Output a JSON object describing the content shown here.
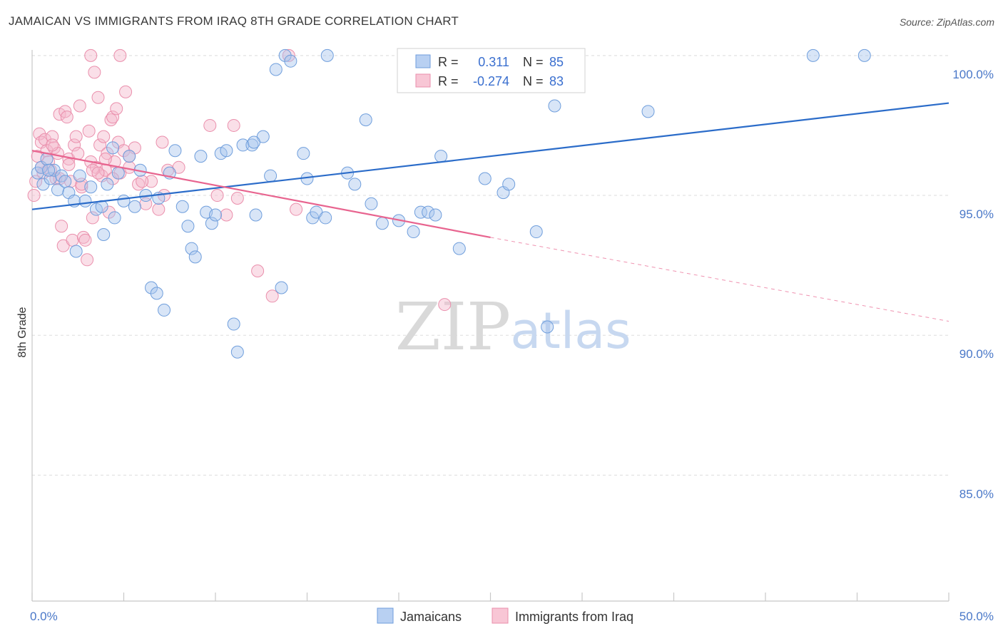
{
  "header": {
    "title": "JAMAICAN VS IMMIGRANTS FROM IRAQ 8TH GRADE CORRELATION CHART",
    "source": "Source: ZipAtlas.com"
  },
  "watermark": {
    "zip": "ZIP",
    "atlas": "atlas"
  },
  "colors": {
    "blue_fill": "#a9c6ee",
    "blue_stroke": "#6f9edc",
    "blue_line": "#2b6cc9",
    "pink_fill": "#f5b8cb",
    "pink_stroke": "#ea8fac",
    "pink_line": "#e8648f",
    "axis_text": "#4a78c8",
    "grid": "#dddddd"
  },
  "legend": {
    "r_label": "R =",
    "n_label": "N =",
    "rows": [
      {
        "series": "Jamaicans",
        "r": "0.311",
        "n": "85"
      },
      {
        "series": "Immigrants from Iraq",
        "r": "-0.274",
        "n": "83"
      }
    ]
  },
  "chart_data": {
    "type": "scatter",
    "xlabel": "",
    "ylabel": "8th Grade",
    "xlim": [
      0,
      50
    ],
    "ylim": [
      80.5,
      100.2
    ],
    "x_tick_labels": [
      "0.0%",
      "50.0%"
    ],
    "y_ticks": [
      85,
      90,
      95,
      100
    ],
    "y_tick_labels": [
      "85.0%",
      "90.0%",
      "95.0%",
      "100.0%"
    ],
    "grid": "horizontal dashed",
    "legend_position": "top-center",
    "series": [
      {
        "name": "Jamaicans",
        "color": "#a9c6ee",
        "trend": {
          "x0": 0,
          "y0": 94.5,
          "x1": 50,
          "y1": 98.3,
          "dashed_from": null
        },
        "points": [
          [
            0.3,
            95.8
          ],
          [
            0.5,
            96.0
          ],
          [
            0.6,
            95.4
          ],
          [
            0.8,
            96.3
          ],
          [
            1.0,
            95.6
          ],
          [
            1.2,
            95.9
          ],
          [
            1.4,
            95.2
          ],
          [
            1.6,
            95.7
          ],
          [
            1.8,
            95.5
          ],
          [
            2.0,
            95.1
          ],
          [
            2.3,
            94.8
          ],
          [
            2.6,
            95.7
          ],
          [
            2.9,
            94.8
          ],
          [
            3.2,
            95.3
          ],
          [
            3.5,
            94.5
          ],
          [
            3.8,
            94.6
          ],
          [
            4.1,
            95.4
          ],
          [
            4.4,
            96.7
          ],
          [
            4.7,
            95.8
          ],
          [
            5.0,
            94.8
          ],
          [
            5.3,
            96.4
          ],
          [
            5.6,
            94.6
          ],
          [
            5.9,
            95.9
          ],
          [
            6.2,
            95.0
          ],
          [
            6.5,
            91.7
          ],
          [
            6.8,
            91.5
          ],
          [
            7.2,
            90.9
          ],
          [
            7.5,
            95.8
          ],
          [
            7.8,
            96.6
          ],
          [
            8.2,
            94.6
          ],
          [
            8.5,
            93.9
          ],
          [
            8.7,
            93.1
          ],
          [
            8.9,
            92.8
          ],
          [
            9.2,
            96.4
          ],
          [
            9.5,
            94.4
          ],
          [
            9.8,
            94.0
          ],
          [
            10.0,
            94.3
          ],
          [
            10.3,
            96.5
          ],
          [
            10.6,
            96.6
          ],
          [
            11.0,
            90.4
          ],
          [
            11.2,
            89.4
          ],
          [
            11.5,
            96.8
          ],
          [
            12.0,
            96.8
          ],
          [
            12.2,
            94.3
          ],
          [
            12.6,
            97.1
          ],
          [
            13.0,
            95.7
          ],
          [
            13.3,
            99.5
          ],
          [
            13.6,
            91.7
          ],
          [
            13.8,
            100.0
          ],
          [
            14.1,
            99.8
          ],
          [
            14.8,
            96.5
          ],
          [
            15.0,
            95.6
          ],
          [
            15.3,
            94.2
          ],
          [
            15.5,
            94.4
          ],
          [
            16.0,
            94.2
          ],
          [
            16.1,
            100.0
          ],
          [
            17.2,
            95.8
          ],
          [
            17.6,
            95.4
          ],
          [
            18.2,
            97.7
          ],
          [
            18.5,
            94.7
          ],
          [
            19.1,
            94.0
          ],
          [
            20.0,
            94.1
          ],
          [
            20.7,
            100.0
          ],
          [
            20.8,
            93.7
          ],
          [
            21.2,
            94.4
          ],
          [
            21.6,
            94.4
          ],
          [
            22.0,
            94.3
          ],
          [
            22.3,
            96.4
          ],
          [
            23.3,
            93.1
          ],
          [
            24.7,
            95.6
          ],
          [
            25.7,
            95.1
          ],
          [
            26.0,
            95.4
          ],
          [
            26.5,
            100.0
          ],
          [
            27.5,
            93.7
          ],
          [
            28.1,
            90.3
          ],
          [
            28.5,
            98.2
          ],
          [
            33.6,
            98.0
          ],
          [
            42.6,
            100.0
          ],
          [
            45.4,
            100.0
          ],
          [
            0.9,
            95.9
          ],
          [
            2.4,
            93.0
          ],
          [
            3.9,
            93.6
          ],
          [
            4.5,
            94.2
          ],
          [
            6.9,
            94.9
          ],
          [
            12.1,
            96.9
          ]
        ]
      },
      {
        "name": "Immigrants from Iraq",
        "color": "#f5b8cb",
        "trend": {
          "x0": 0,
          "y0": 96.6,
          "x1": 25,
          "y1": 93.5,
          "dashed_from": 25,
          "dashed_x1": 50,
          "dashed_y1": 90.5
        },
        "points": [
          [
            0.1,
            95.0
          ],
          [
            0.2,
            95.5
          ],
          [
            0.3,
            96.4
          ],
          [
            0.4,
            97.2
          ],
          [
            0.5,
            96.9
          ],
          [
            0.6,
            95.8
          ],
          [
            0.7,
            97.0
          ],
          [
            0.8,
            96.6
          ],
          [
            0.9,
            96.2
          ],
          [
            1.0,
            95.9
          ],
          [
            1.1,
            97.1
          ],
          [
            1.2,
            96.7
          ],
          [
            1.3,
            95.6
          ],
          [
            1.4,
            96.5
          ],
          [
            1.5,
            97.9
          ],
          [
            1.6,
            93.9
          ],
          [
            1.7,
            93.2
          ],
          [
            1.8,
            98.0
          ],
          [
            1.9,
            97.8
          ],
          [
            2.0,
            96.3
          ],
          [
            2.1,
            95.5
          ],
          [
            2.2,
            93.4
          ],
          [
            2.3,
            96.8
          ],
          [
            2.4,
            97.1
          ],
          [
            2.5,
            96.5
          ],
          [
            2.6,
            98.2
          ],
          [
            2.7,
            95.3
          ],
          [
            2.8,
            93.5
          ],
          [
            2.9,
            93.4
          ],
          [
            3.0,
            92.7
          ],
          [
            3.1,
            97.3
          ],
          [
            3.2,
            96.2
          ],
          [
            3.3,
            94.2
          ],
          [
            3.4,
            99.4
          ],
          [
            3.5,
            96.0
          ],
          [
            3.6,
            98.5
          ],
          [
            3.7,
            96.8
          ],
          [
            3.8,
            95.7
          ],
          [
            3.9,
            97.1
          ],
          [
            4.0,
            95.9
          ],
          [
            4.1,
            96.5
          ],
          [
            4.2,
            94.4
          ],
          [
            4.3,
            97.7
          ],
          [
            4.4,
            97.8
          ],
          [
            4.5,
            96.2
          ],
          [
            4.6,
            98.1
          ],
          [
            4.7,
            96.9
          ],
          [
            4.8,
            95.8
          ],
          [
            5.0,
            96.6
          ],
          [
            5.1,
            98.7
          ],
          [
            5.3,
            96.0
          ],
          [
            5.6,
            96.7
          ],
          [
            5.8,
            95.4
          ],
          [
            6.2,
            94.7
          ],
          [
            6.5,
            95.5
          ],
          [
            6.9,
            94.5
          ],
          [
            7.1,
            96.9
          ],
          [
            7.4,
            95.9
          ],
          [
            9.7,
            97.5
          ],
          [
            10.1,
            95.0
          ],
          [
            10.6,
            94.3
          ],
          [
            11.0,
            97.5
          ],
          [
            11.2,
            94.9
          ],
          [
            12.3,
            92.3
          ],
          [
            13.1,
            91.4
          ],
          [
            14.4,
            94.5
          ],
          [
            22.5,
            91.1
          ],
          [
            3.2,
            100.0
          ],
          [
            4.8,
            100.0
          ],
          [
            14.0,
            100.0
          ],
          [
            0.5,
            96.0
          ],
          [
            1.1,
            96.8
          ],
          [
            1.5,
            95.6
          ],
          [
            2.0,
            96.1
          ],
          [
            2.7,
            95.4
          ],
          [
            3.3,
            95.9
          ],
          [
            4.0,
            96.3
          ],
          [
            5.3,
            96.4
          ],
          [
            6.0,
            95.5
          ],
          [
            7.2,
            95.0
          ],
          [
            3.6,
            95.8
          ],
          [
            4.4,
            95.6
          ],
          [
            8.0,
            96.0
          ]
        ]
      }
    ]
  },
  "bottom_legend": [
    {
      "label": "Jamaicans"
    },
    {
      "label": "Immigrants from Iraq"
    }
  ]
}
